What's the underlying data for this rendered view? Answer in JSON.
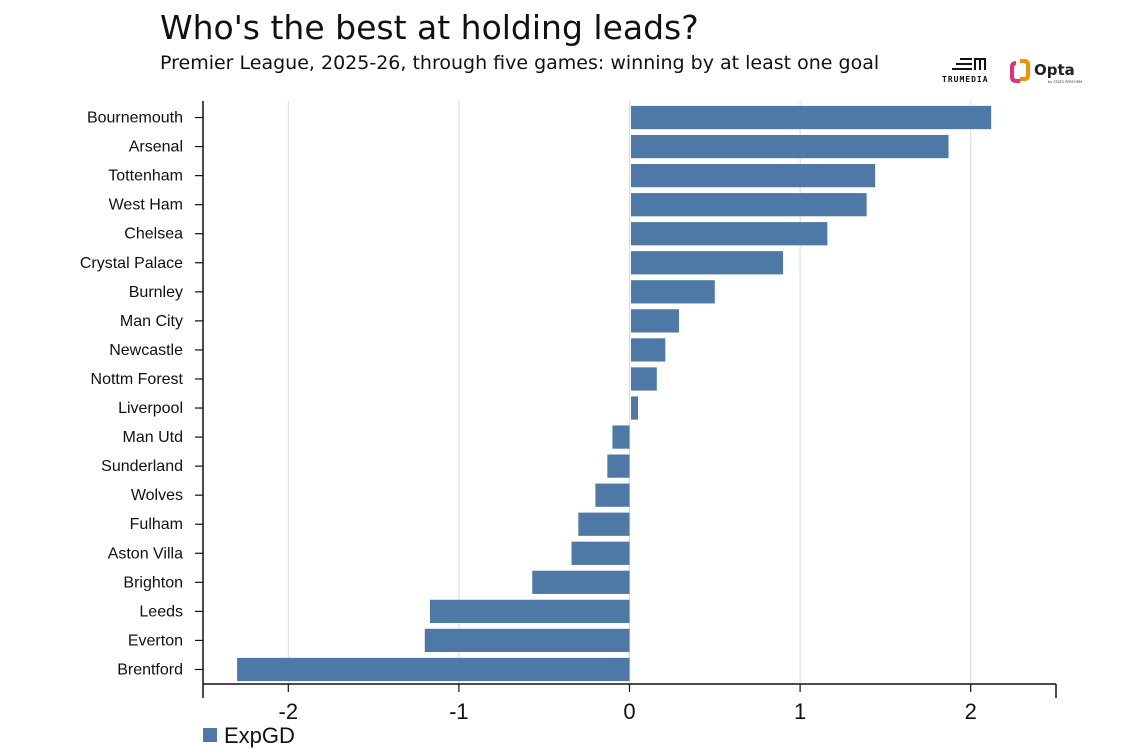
{
  "header": {
    "title": "Who's the best at holding leads?",
    "subtitle": "Premier League, 2025-26, through five games: winning by at least one goal"
  },
  "logos": {
    "trumedia_label": "TRUMEDIA",
    "opta_label": "Opta",
    "opta_sub": "by STATS PERFORM"
  },
  "chart_data": {
    "type": "bar",
    "orientation": "horizontal",
    "title": "Who's the best at holding leads?",
    "subtitle": "Premier League, 2025-26, through five games: winning by at least one goal",
    "categories": [
      "Bournemouth",
      "Arsenal",
      "Tottenham",
      "West Ham",
      "Chelsea",
      "Crystal Palace",
      "Burnley",
      "Man City",
      "Newcastle",
      "Nottm Forest",
      "Liverpool",
      "Man Utd",
      "Sunderland",
      "Wolves",
      "Fulham",
      "Aston Villa",
      "Brighton",
      "Leeds",
      "Everton",
      "Brentford"
    ],
    "series": [
      {
        "name": "ExpGD",
        "color": "#4e79a7",
        "values": [
          2.12,
          1.87,
          1.44,
          1.39,
          1.16,
          0.9,
          0.5,
          0.29,
          0.21,
          0.16,
          0.05,
          -0.1,
          -0.13,
          -0.2,
          -0.3,
          -0.34,
          -0.57,
          -1.17,
          -1.2,
          -2.3
        ]
      }
    ],
    "xlim": [
      -2.5,
      2.5
    ],
    "xticks": [
      "-2",
      "-1",
      "0",
      "1",
      "2"
    ],
    "xtick_values": [
      -2,
      -1,
      0,
      1,
      2
    ],
    "xlabel": "",
    "ylabel": "",
    "grid": true,
    "legend": "bottom-left"
  }
}
